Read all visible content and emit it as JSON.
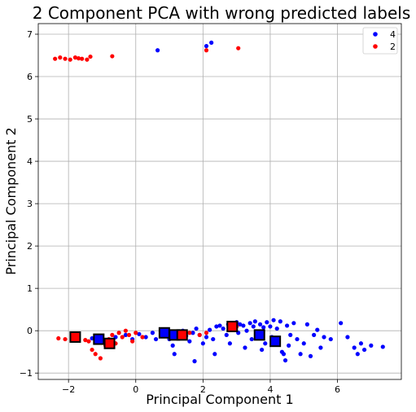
{
  "chart_data": {
    "type": "scatter",
    "title": "2 Component PCA with wrong predicted labels",
    "xlabel": "Principal Component 1",
    "ylabel": "Principal Component 2",
    "xlim": [
      -2.9,
      7.9
    ],
    "ylim": [
      -1.15,
      7.25
    ],
    "xticks": [
      -2,
      0,
      2,
      4,
      6
    ],
    "yticks": [
      -1,
      0,
      1,
      2,
      3,
      4,
      5,
      6,
      7
    ],
    "grid": true,
    "legend_position": "top-right",
    "series": [
      {
        "name": "4",
        "color": "#0000ff",
        "points": [
          [
            0.65,
            6.62
          ],
          [
            2.25,
            6.8
          ],
          [
            2.1,
            6.72
          ],
          [
            -1.3,
            -0.18
          ],
          [
            -1.0,
            -0.22
          ],
          [
            -0.6,
            -0.15
          ],
          [
            -0.3,
            -0.1
          ],
          [
            -0.1,
            -0.2
          ],
          [
            0.1,
            -0.08
          ],
          [
            0.3,
            -0.15
          ],
          [
            0.5,
            -0.05
          ],
          [
            0.6,
            -0.2
          ],
          [
            0.8,
            -0.1
          ],
          [
            0.9,
            0.02
          ],
          [
            1.0,
            -0.2
          ],
          [
            1.1,
            -0.35
          ],
          [
            1.15,
            -0.55
          ],
          [
            1.2,
            -0.15
          ],
          [
            1.3,
            -0.08
          ],
          [
            1.4,
            0.0
          ],
          [
            1.5,
            -0.12
          ],
          [
            1.6,
            -0.25
          ],
          [
            1.7,
            -0.05
          ],
          [
            1.75,
            -0.72
          ],
          [
            1.8,
            0.05
          ],
          [
            1.9,
            -0.1
          ],
          [
            2.0,
            -0.3
          ],
          [
            2.1,
            -0.15
          ],
          [
            2.2,
            0.02
          ],
          [
            2.3,
            -0.2
          ],
          [
            2.35,
            -0.55
          ],
          [
            2.4,
            0.1
          ],
          [
            2.5,
            0.12
          ],
          [
            2.6,
            0.05
          ],
          [
            2.7,
            -0.1
          ],
          [
            2.75,
            0.15
          ],
          [
            2.8,
            -0.3
          ],
          [
            2.9,
            0.08
          ],
          [
            3.0,
            0.2
          ],
          [
            3.05,
            -0.05
          ],
          [
            3.1,
            0.15
          ],
          [
            3.2,
            0.12
          ],
          [
            3.25,
            -0.4
          ],
          [
            3.3,
            0.0
          ],
          [
            3.4,
            0.18
          ],
          [
            3.45,
            -0.2
          ],
          [
            3.5,
            0.1
          ],
          [
            3.55,
            0.22
          ],
          [
            3.6,
            -0.05
          ],
          [
            3.7,
            0.15
          ],
          [
            3.75,
            -0.45
          ],
          [
            3.8,
            0.08
          ],
          [
            3.85,
            -0.3
          ],
          [
            3.9,
            0.2
          ],
          [
            4.0,
            0.1
          ],
          [
            4.05,
            -0.15
          ],
          [
            4.1,
            0.25
          ],
          [
            4.15,
            -0.2
          ],
          [
            4.2,
            0.05
          ],
          [
            4.3,
            0.22
          ],
          [
            4.35,
            -0.5
          ],
          [
            4.4,
            -0.55
          ],
          [
            4.45,
            -0.7
          ],
          [
            4.5,
            0.12
          ],
          [
            4.55,
            -0.35
          ],
          [
            4.6,
            -0.1
          ],
          [
            4.7,
            0.18
          ],
          [
            4.8,
            -0.2
          ],
          [
            4.9,
            -0.55
          ],
          [
            5.0,
            -0.3
          ],
          [
            5.1,
            0.15
          ],
          [
            5.2,
            -0.6
          ],
          [
            5.3,
            -0.1
          ],
          [
            5.4,
            0.02
          ],
          [
            5.5,
            -0.4
          ],
          [
            5.6,
            -0.15
          ],
          [
            5.8,
            -0.2
          ],
          [
            6.1,
            0.18
          ],
          [
            6.3,
            -0.15
          ],
          [
            6.5,
            -0.4
          ],
          [
            6.6,
            -0.55
          ],
          [
            6.7,
            -0.3
          ],
          [
            6.8,
            -0.45
          ],
          [
            7.0,
            -0.35
          ],
          [
            7.35,
            -0.38
          ]
        ]
      },
      {
        "name": "2",
        "color": "#ff0000",
        "points": [
          [
            -2.4,
            6.42
          ],
          [
            -2.25,
            6.45
          ],
          [
            -2.1,
            6.42
          ],
          [
            -1.95,
            6.4
          ],
          [
            -1.8,
            6.45
          ],
          [
            -1.7,
            6.43
          ],
          [
            -1.6,
            6.42
          ],
          [
            -1.45,
            6.4
          ],
          [
            -1.35,
            6.47
          ],
          [
            -0.7,
            6.48
          ],
          [
            2.1,
            6.62
          ],
          [
            3.05,
            6.67
          ],
          [
            -2.3,
            -0.18
          ],
          [
            -2.1,
            -0.2
          ],
          [
            -1.9,
            -0.15
          ],
          [
            -1.7,
            -0.2
          ],
          [
            -1.5,
            -0.22
          ],
          [
            -1.4,
            -0.25
          ],
          [
            -1.3,
            -0.45
          ],
          [
            -1.2,
            -0.55
          ],
          [
            -1.05,
            -0.65
          ],
          [
            -0.9,
            -0.35
          ],
          [
            -0.8,
            -0.2
          ],
          [
            -0.7,
            -0.1
          ],
          [
            -0.6,
            -0.3
          ],
          [
            -0.5,
            -0.05
          ],
          [
            -0.4,
            -0.15
          ],
          [
            -0.3,
            0.0
          ],
          [
            -0.2,
            -0.1
          ],
          [
            -0.1,
            -0.25
          ],
          [
            0.0,
            -0.05
          ],
          [
            0.2,
            -0.15
          ],
          [
            1.0,
            -0.12
          ],
          [
            1.6,
            -0.05
          ],
          [
            1.9,
            -0.1
          ],
          [
            2.1,
            -0.05
          ],
          [
            2.8,
            0.02
          ],
          [
            3.0,
            0.1
          ]
        ]
      }
    ],
    "highlighted": [
      {
        "x": -1.8,
        "y": -0.15,
        "label": "2",
        "color": "#ff0000"
      },
      {
        "x": -1.1,
        "y": -0.2,
        "label": "4",
        "color": "#0000ff"
      },
      {
        "x": -0.78,
        "y": -0.3,
        "label": "2",
        "color": "#ff0000"
      },
      {
        "x": 0.85,
        "y": -0.05,
        "label": "4",
        "color": "#0000ff"
      },
      {
        "x": 1.15,
        "y": -0.1,
        "label": "4",
        "color": "#0000ff"
      },
      {
        "x": 1.38,
        "y": -0.1,
        "label": "2",
        "color": "#ff0000"
      },
      {
        "x": 2.87,
        "y": 0.1,
        "label": "2",
        "color": "#ff0000"
      },
      {
        "x": 3.68,
        "y": -0.1,
        "label": "4",
        "color": "#0000ff"
      },
      {
        "x": 4.15,
        "y": -0.25,
        "label": "4",
        "color": "#0000ff"
      }
    ]
  }
}
